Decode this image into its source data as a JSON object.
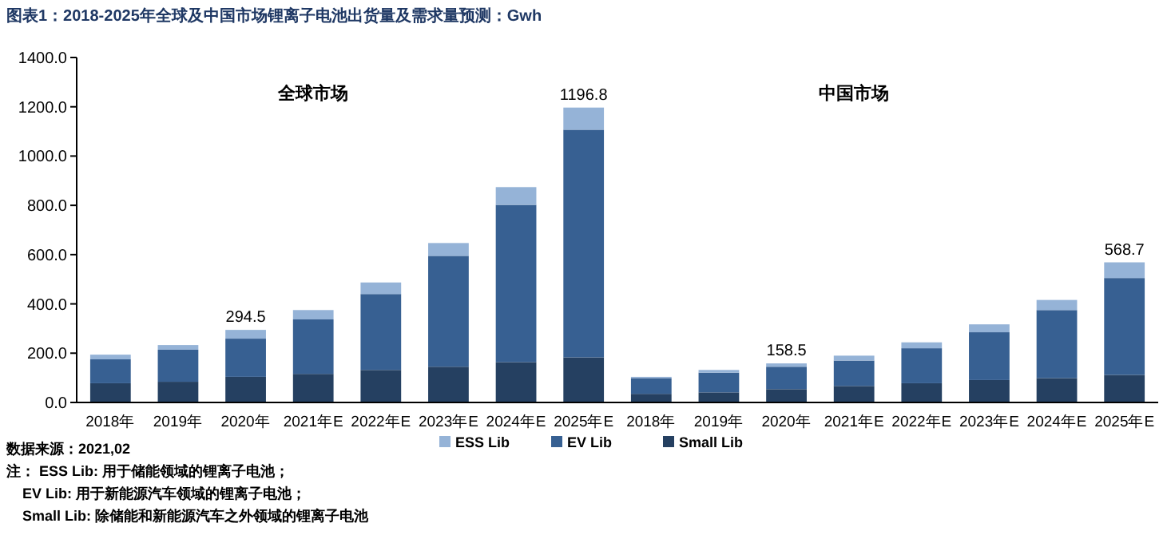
{
  "chart_data": {
    "type": "bar",
    "stacked": true,
    "title": "图表1：2018-2025年全球及中国市场锂离子电池出货量及需求量预测：Gwh",
    "categories": [
      "2018年",
      "2019年",
      "2020年",
      "2021年E",
      "2022年E",
      "2023年E",
      "2024年E",
      "2025年E",
      "2018年",
      "2019年",
      "2020年",
      "2021年E",
      "2022年E",
      "2023年E",
      "2024年E",
      "2025年E"
    ],
    "series": [
      {
        "name": "Small Lib",
        "color": "#254061",
        "values": [
          78,
          84,
          104,
          116,
          132,
          145,
          164,
          183,
          35,
          41,
          54,
          67,
          78,
          91,
          99,
          112
        ]
      },
      {
        "name": "EV Lib",
        "color": "#376092",
        "values": [
          97,
          130,
          155,
          221,
          308,
          450,
          638,
          924,
          64,
          80,
          91,
          103,
          142,
          194,
          276,
          393
        ]
      },
      {
        "name": "ESS Lib",
        "color": "#95b3d7",
        "values": [
          19,
          19,
          35.5,
          38,
          47,
          52,
          72,
          89.8,
          5,
          11,
          13.5,
          20,
          24,
          32,
          41,
          63.7
        ]
      }
    ],
    "totals": [
      null,
      null,
      "294.5",
      null,
      null,
      null,
      null,
      "1196.8",
      null,
      null,
      "158.5",
      null,
      null,
      null,
      null,
      "568.7"
    ],
    "ylim": [
      0,
      1400
    ],
    "yticks": [
      {
        "value": 0,
        "label": "0.0"
      },
      {
        "value": 200,
        "label": "200.0"
      },
      {
        "value": 400,
        "label": "400.0"
      },
      {
        "value": 600,
        "label": "600.0"
      },
      {
        "value": 800,
        "label": "800.0"
      },
      {
        "value": 1000,
        "label": "1000.0"
      },
      {
        "value": 1200,
        "label": "1200.0"
      },
      {
        "value": 1400,
        "label": "1400.0"
      }
    ],
    "legend": "bottom",
    "annotations": [
      "全球市场",
      "中国市场",
      "数据来源：2021,02",
      "注： ESS Lib: 用于储能领域的锂离子电池；",
      "EV Lib: 用于新能源汽车领域的锂离子电池；",
      "Small Lib: 除储能和新能源汽车之外领域的锂离子电池"
    ]
  }
}
